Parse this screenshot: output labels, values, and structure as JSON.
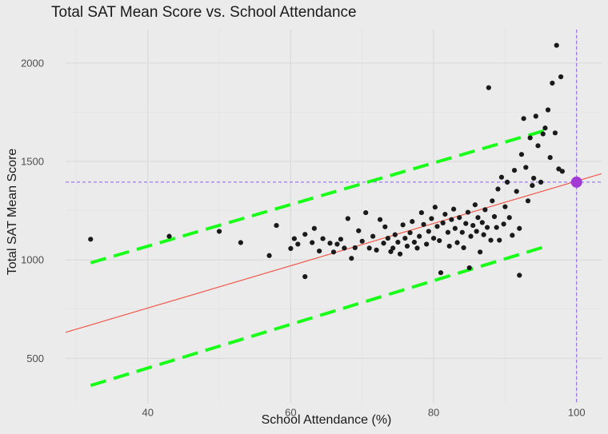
{
  "chart_data": {
    "type": "scatter",
    "title": "Total SAT Mean Score vs. School Attendance",
    "xlabel": "School Attendance (%)",
    "ylabel": "Total SAT Mean Score",
    "xlim": [
      28.5,
      103.5
    ],
    "ylim": [
      270,
      2170
    ],
    "x_ticks": [
      40,
      60,
      80,
      100
    ],
    "y_ticks": [
      500,
      1000,
      1500,
      2000
    ],
    "grid": true,
    "legend": "none",
    "colors": {
      "background": "#ebebeb",
      "grid_major": "#d9d9d9",
      "grid_minor": "#e3e3e3",
      "points": "#1a1a1a",
      "regression": "#f0584b",
      "band": "#1aff1a",
      "reference": "#8a5cf5",
      "highlight": "#a23bd6"
    },
    "regression_line": {
      "x": [
        28.5,
        103.5
      ],
      "y": [
        632,
        1438
      ]
    },
    "prediction_band": {
      "upper": {
        "x": [
          32,
          96
        ],
        "y": [
          985,
          1662
        ]
      },
      "lower": {
        "x": [
          32,
          96
        ],
        "y": [
          362,
          1072
        ]
      }
    },
    "reference_lines": {
      "x": 100,
      "y": 1395
    },
    "highlight_point": {
      "x": 100,
      "y": 1395
    },
    "points": [
      [
        32,
        1105
      ],
      [
        43,
        1120
      ],
      [
        50,
        1145
      ],
      [
        53,
        1088
      ],
      [
        57,
        1022
      ],
      [
        58,
        1175
      ],
      [
        60,
        1058
      ],
      [
        60.5,
        1108
      ],
      [
        61,
        1080
      ],
      [
        62,
        915
      ],
      [
        62,
        1130
      ],
      [
        63,
        1088
      ],
      [
        63.3,
        1160
      ],
      [
        64,
        1045
      ],
      [
        64.5,
        1108
      ],
      [
        65.5,
        1085
      ],
      [
        66,
        1040
      ],
      [
        66.5,
        1080
      ],
      [
        67,
        1105
      ],
      [
        67.5,
        1060
      ],
      [
        68,
        1210
      ],
      [
        68.5,
        1008
      ],
      [
        69,
        1062
      ],
      [
        69.5,
        1148
      ],
      [
        70,
        1095
      ],
      [
        70.5,
        1240
      ],
      [
        71,
        1060
      ],
      [
        71.5,
        1120
      ],
      [
        72,
        1050
      ],
      [
        72.5,
        1205
      ],
      [
        73,
        1085
      ],
      [
        73.2,
        1168
      ],
      [
        73.6,
        1110
      ],
      [
        74,
        1042
      ],
      [
        74.3,
        1060
      ],
      [
        74.6,
        1128
      ],
      [
        75,
        1090
      ],
      [
        75.3,
        1030
      ],
      [
        75.7,
        1178
      ],
      [
        76,
        1110
      ],
      [
        76.3,
        1070
      ],
      [
        76.7,
        1138
      ],
      [
        77,
        1195
      ],
      [
        77.3,
        1090
      ],
      [
        77.7,
        1060
      ],
      [
        78,
        1120
      ],
      [
        78.3,
        1240
      ],
      [
        78.6,
        1180
      ],
      [
        79,
        1080
      ],
      [
        79.3,
        1145
      ],
      [
        79.7,
        1210
      ],
      [
        80,
        1110
      ],
      [
        80.2,
        1268
      ],
      [
        80.5,
        1170
      ],
      [
        80.8,
        1098
      ],
      [
        81,
        935
      ],
      [
        81.3,
        1188
      ],
      [
        81.6,
        1232
      ],
      [
        82,
        1140
      ],
      [
        82.2,
        1070
      ],
      [
        82.5,
        1205
      ],
      [
        82.8,
        1258
      ],
      [
        83,
        1160
      ],
      [
        83.3,
        1088
      ],
      [
        83.6,
        1215
      ],
      [
        84,
        1140
      ],
      [
        84.2,
        1062
      ],
      [
        84.5,
        1185
      ],
      [
        84.8,
        1242
      ],
      [
        85,
        960
      ],
      [
        85.2,
        1120
      ],
      [
        85.5,
        1175
      ],
      [
        85.8,
        1280
      ],
      [
        86,
        1145
      ],
      [
        86.2,
        1215
      ],
      [
        86.5,
        1040
      ],
      [
        86.8,
        1190
      ],
      [
        87,
        1128
      ],
      [
        87.2,
        1255
      ],
      [
        87.5,
        1165
      ],
      [
        87.7,
        1875
      ],
      [
        88,
        1100
      ],
      [
        88.2,
        1300
      ],
      [
        88.5,
        1220
      ],
      [
        88.8,
        1165
      ],
      [
        89,
        1360
      ],
      [
        89.2,
        1100
      ],
      [
        89.5,
        1420
      ],
      [
        89.8,
        1182
      ],
      [
        90,
        1270
      ],
      [
        90.3,
        1395
      ],
      [
        90.6,
        1215
      ],
      [
        91,
        1125
      ],
      [
        91.3,
        1455
      ],
      [
        91.6,
        1348
      ],
      [
        92,
        1160
      ],
      [
        92,
        922
      ],
      [
        92.3,
        1536
      ],
      [
        92.6,
        1718
      ],
      [
        92.9,
        1470
      ],
      [
        93.2,
        1300
      ],
      [
        93.5,
        1620
      ],
      [
        93.8,
        1378
      ],
      [
        94,
        1415
      ],
      [
        94.3,
        1730
      ],
      [
        94.6,
        1580
      ],
      [
        95,
        1395
      ],
      [
        95.3,
        1640
      ],
      [
        95.6,
        1670
      ],
      [
        96,
        1762
      ],
      [
        96.3,
        1520
      ],
      [
        96.6,
        1898
      ],
      [
        97,
        1645
      ],
      [
        97.2,
        2090
      ],
      [
        97.5,
        1462
      ],
      [
        97.8,
        1930
      ],
      [
        98,
        1450
      ]
    ]
  }
}
